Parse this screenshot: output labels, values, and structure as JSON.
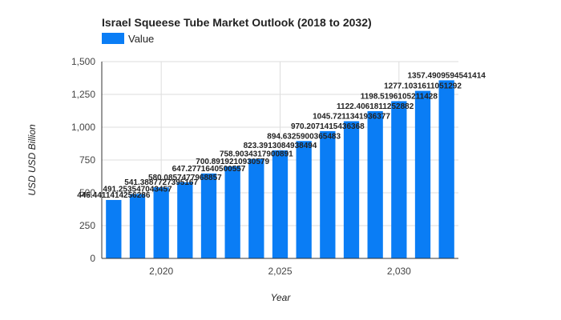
{
  "chart_data": {
    "type": "bar",
    "title": "Israel Squeese Tube Market Outlook (2018 to 2032)",
    "xlabel": "Year",
    "ylabel": "USD USD Billion",
    "legend": {
      "position": "top-left",
      "entries": [
        "Value"
      ]
    },
    "grid": true,
    "ylim": [
      0,
      1500
    ],
    "yticks": [
      0,
      250,
      500,
      750,
      1000,
      1250,
      1500
    ],
    "ytick_labels": [
      "0",
      "250",
      "500",
      "750",
      "1,000",
      "1,250",
      "1,500"
    ],
    "xticks": [
      2020,
      2025,
      2030
    ],
    "xtick_labels": [
      "2,020",
      "2,025",
      "2,030"
    ],
    "x": [
      2018,
      2019,
      2020,
      2021,
      2022,
      2023,
      2024,
      2025,
      2026,
      2027,
      2028,
      2029,
      2030,
      2031,
      2032
    ],
    "series": [
      {
        "name": "Value",
        "color": "#0a7df5",
        "values": [
          445.4411414256286,
          491.253547043457,
          541.3887727395168,
          580.0857477968857,
          647.2771640500557,
          700.8919210930579,
          758.9034317900891,
          823.3913084938494,
          894.6325900365483,
          970.2071415436368,
          1045.7211341936377,
          1122.4061811252882,
          1198.5196105211428,
          1277.1031611051292,
          1357.4909594541414
        ],
        "labels": [
          "445.4411414256286",
          "491.253547043457",
          "541.3887727395167",
          "580.0857477968857",
          "647.2771640500557",
          "700.8919210930579",
          "758.9034317900891",
          "823.3913084938494",
          "894.6325900365483",
          "970.2071415436368",
          "1045.7211341936377",
          "1122.4061811252882",
          "1198.5196105211428",
          "1277.1031611051292",
          "1357.4909594541414"
        ]
      }
    ]
  }
}
